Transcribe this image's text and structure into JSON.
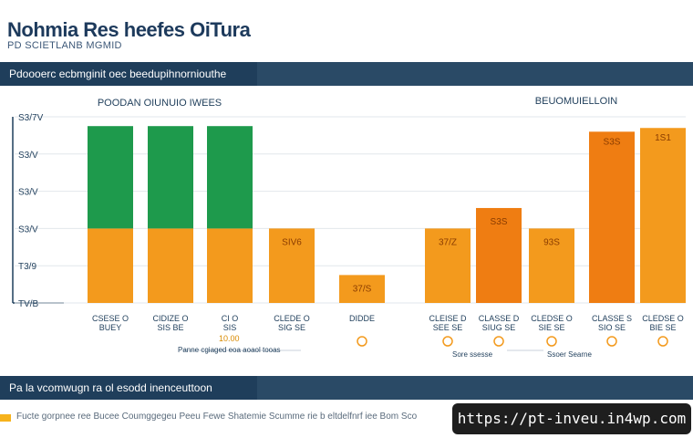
{
  "header": {
    "title": "Nohmia Res heefes OiTura",
    "subtitle": "PD SCIETLANB MGMID"
  },
  "top_band": {
    "text": "Pdoooerc ecbmginit oec beedupihnorniouthe"
  },
  "bottom_band": {
    "text": "Pa la vcomwugn ra ol esodd inenceuttoon"
  },
  "footer": {
    "text": "Fucte gorpnee ree Bucee Coumggegeu Peeu Fewe Shatemie Scumme rie b eltdelfnrf iee Bom Sco"
  },
  "url_badge": {
    "text": "https://pt-inveu.in4wp.com"
  },
  "colors": {
    "green": "#1e9a4c",
    "orange": "#f39a1d",
    "dark_orange": "#ef7d12",
    "navy": "#1f3e5b"
  },
  "chart_data": {
    "type": "bar",
    "left_panel_title": "POODAN OIUNUIO IWEES",
    "right_panel_title": "BEUOMUIELLOIN",
    "y_tick_labels": [
      "TV/B",
      "T3/9",
      "S3/V",
      "S3/V",
      "S3/V",
      "S3/7V"
    ],
    "ylim": [
      0,
      100
    ],
    "categories": [
      {
        "label": "CSESE O",
        "sublabel": "BUEY",
        "icon": false
      },
      {
        "label": "CIDIZE O",
        "sublabel": "SIS BE",
        "icon": false
      },
      {
        "label": "CI O",
        "sublabel": "SIS",
        "icon": false
      },
      {
        "label": "CLEDE O",
        "sublabel": "SIG SE",
        "icon": false
      },
      {
        "label": "DIDDE",
        "sublabel": "",
        "icon": true
      },
      {
        "label": "CLEISE D",
        "sublabel": "SEE SE",
        "icon": true
      },
      {
        "label": "CLASSE D",
        "sublabel": "SIUG SE",
        "icon": true
      },
      {
        "label": "CLEDSE O",
        "sublabel": "SIE SE",
        "icon": true
      },
      {
        "label": "CLASSE S",
        "sublabel": "SIO SE",
        "icon": true
      },
      {
        "label": "CLEDSE O",
        "sublabel": "BIE SE",
        "icon": true
      }
    ],
    "series": [
      {
        "values": [
          40,
          40,
          40,
          40,
          15,
          40,
          51,
          40,
          0,
          0
        ]
      },
      {
        "values": [
          55,
          55,
          55,
          0,
          0,
          0,
          0,
          0,
          0,
          0
        ]
      },
      {
        "values": [
          0,
          0,
          0,
          0,
          0,
          0,
          0,
          0,
          92,
          94
        ]
      }
    ],
    "data_labels": [
      "",
      "",
      "",
      "SIV6",
      "37/S",
      "37/Z",
      "S3S",
      "93S",
      "S3S",
      "1S1"
    ],
    "left_legend": "Panne cgiaged eoa aoaol tooas",
    "left_legend_value": "10.00",
    "right_legend_left": "Sore ssesse",
    "right_legend_right": "Ssoer Searne"
  }
}
